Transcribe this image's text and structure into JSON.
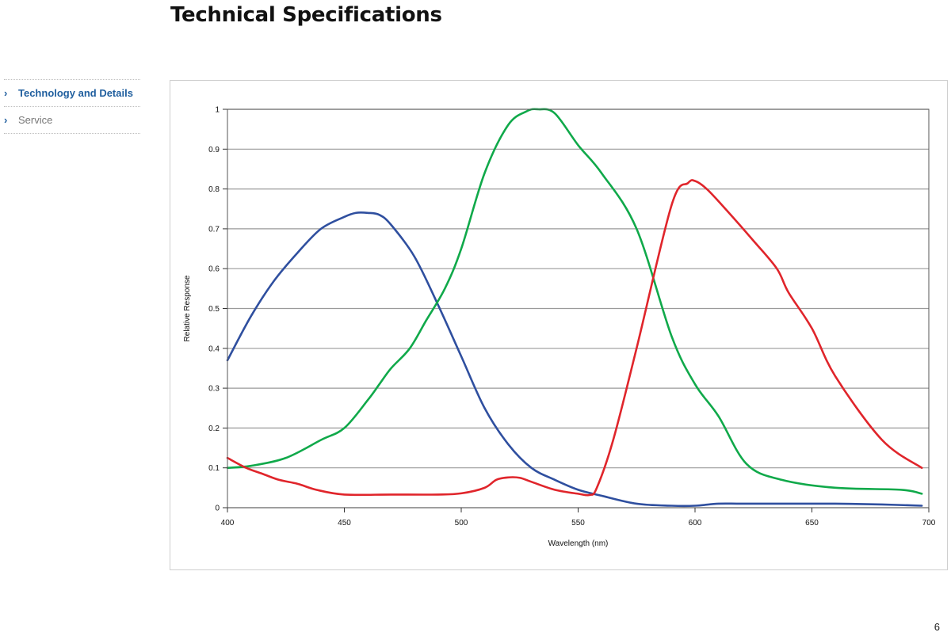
{
  "page": {
    "title": "Technical Specifications",
    "page_number": "6"
  },
  "sidebar": {
    "items": [
      {
        "label": "Technology and Details",
        "active": true,
        "chevron": "›"
      },
      {
        "label": "Service",
        "active": false,
        "chevron": "›"
      }
    ]
  },
  "chart_data": {
    "type": "line",
    "title": "",
    "xlabel": "Wavelength (nm)",
    "ylabel": "Relative Response",
    "xlim": [
      400,
      700
    ],
    "ylim": [
      0,
      1
    ],
    "xticks": [
      400,
      450,
      500,
      550,
      600,
      650,
      700
    ],
    "yticks": [
      0,
      0.1,
      0.2,
      0.3,
      0.4,
      0.5,
      0.6,
      0.7,
      0.8,
      0.9,
      1
    ],
    "grid": "horizontal",
    "legend": "none",
    "series": [
      {
        "color": "#2f4f9f",
        "x": [
          400,
          410,
          420,
          430,
          440,
          450,
          455,
          460,
          465,
          470,
          480,
          490,
          500,
          510,
          520,
          530,
          540,
          550,
          560,
          575,
          590,
          600,
          610,
          620,
          640,
          660,
          680,
          697
        ],
        "y": [
          0.37,
          0.48,
          0.57,
          0.64,
          0.7,
          0.73,
          0.74,
          0.74,
          0.735,
          0.71,
          0.63,
          0.51,
          0.38,
          0.25,
          0.16,
          0.1,
          0.07,
          0.045,
          0.03,
          0.01,
          0.005,
          0.005,
          0.01,
          0.01,
          0.01,
          0.01,
          0.008,
          0.005
        ]
      },
      {
        "color": "#10a94a",
        "x": [
          400,
          410,
          425,
          440,
          450,
          460,
          465,
          470,
          478,
          485,
          493,
          500,
          510,
          520,
          528,
          533,
          540,
          550,
          560,
          575,
          590,
          600,
          610,
          622,
          637,
          660,
          688,
          697
        ],
        "y": [
          0.1,
          0.105,
          0.125,
          0.17,
          0.2,
          0.27,
          0.31,
          0.35,
          0.4,
          0.47,
          0.55,
          0.65,
          0.84,
          0.96,
          0.995,
          1.0,
          0.99,
          0.91,
          0.84,
          0.7,
          0.43,
          0.31,
          0.23,
          0.11,
          0.07,
          0.05,
          0.045,
          0.035
        ]
      },
      {
        "color": "#e0252b",
        "x": [
          400,
          408,
          415,
          422,
          430,
          438,
          450,
          470,
          490,
          500,
          510,
          515,
          520,
          525,
          530,
          540,
          550,
          555,
          558,
          565,
          575,
          590,
          597,
          600,
          605,
          613,
          625,
          635,
          640,
          650,
          660,
          680,
          697
        ],
        "y": [
          0.125,
          0.1,
          0.085,
          0.07,
          0.06,
          0.045,
          0.033,
          0.033,
          0.033,
          0.036,
          0.05,
          0.07,
          0.076,
          0.075,
          0.065,
          0.045,
          0.035,
          0.032,
          0.05,
          0.17,
          0.4,
          0.76,
          0.815,
          0.82,
          0.8,
          0.75,
          0.67,
          0.6,
          0.54,
          0.45,
          0.33,
          0.17,
          0.1
        ]
      }
    ]
  }
}
